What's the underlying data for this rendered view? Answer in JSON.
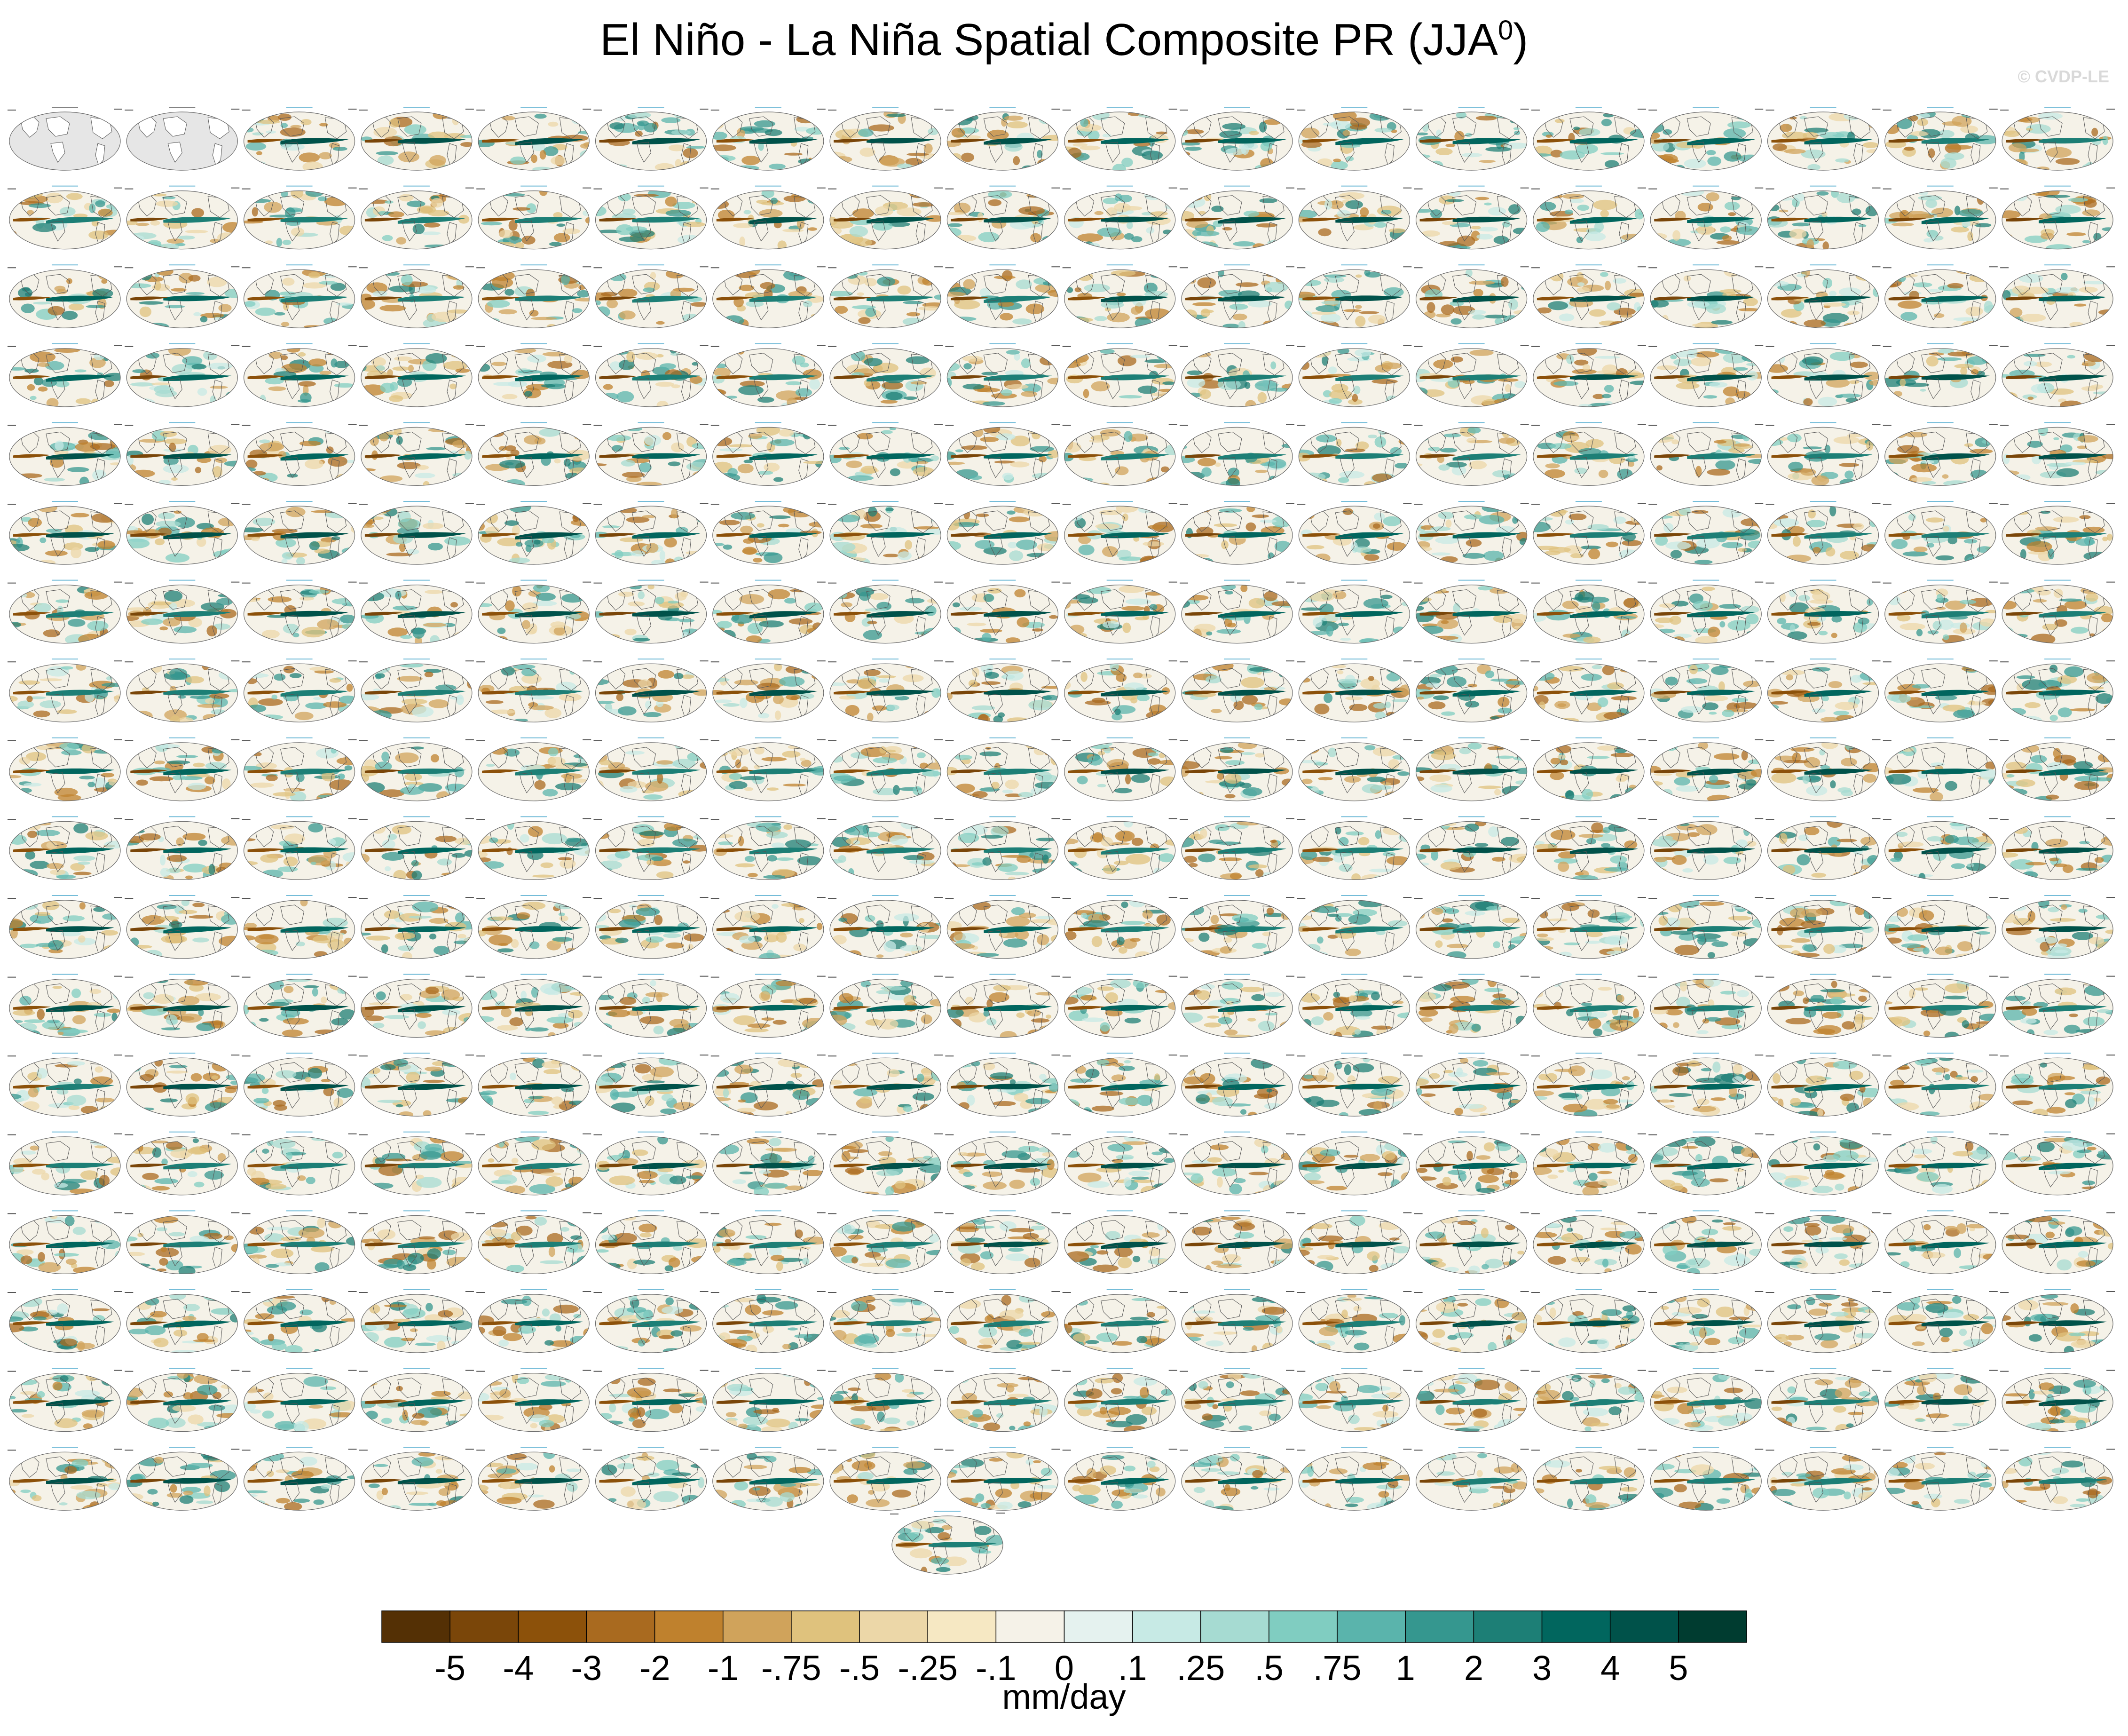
{
  "title": "El Niño - La Niña Spatial Composite PR (JJA",
  "title_sup": "0",
  "title_close": ")",
  "watermark": "© CVDP-LE",
  "units": "mm/day",
  "colors": {
    "scale": [
      "#543005",
      "#7a4609",
      "#8c510a",
      "#a96a1f",
      "#bf812d",
      "#d0a35b",
      "#dfc27d",
      "#ecd7a8",
      "#f6e8c3",
      "#f5f2e8",
      "#e5f2ef",
      "#c7eae5",
      "#a6dbd2",
      "#80cdc1",
      "#5ab4ac",
      "#35978f",
      "#1d7f76",
      "#01665e",
      "#00524a",
      "#003c30"
    ],
    "land": "#ffffff",
    "coast": "#555555",
    "obs_fill": "#e6e6e6"
  },
  "chart_data": {
    "type": "heatmap",
    "description_grid": {
      "columns": 18,
      "rows": 18,
      "extra_panels": 1
    },
    "colorbar": {
      "labels": [
        "-5",
        "-4",
        "-3",
        "-2",
        "-1",
        "-.75",
        "-.5",
        "-.25",
        "-.1",
        "0",
        ".1",
        ".25",
        ".5",
        ".75",
        "1",
        "2",
        "3",
        "4",
        "5"
      ],
      "levels": [
        -5,
        -4,
        -3,
        -2,
        -1,
        -0.75,
        -0.5,
        -0.25,
        -0.1,
        0,
        0.1,
        0.25,
        0.5,
        0.75,
        1,
        2,
        3,
        4,
        5
      ]
    }
  }
}
